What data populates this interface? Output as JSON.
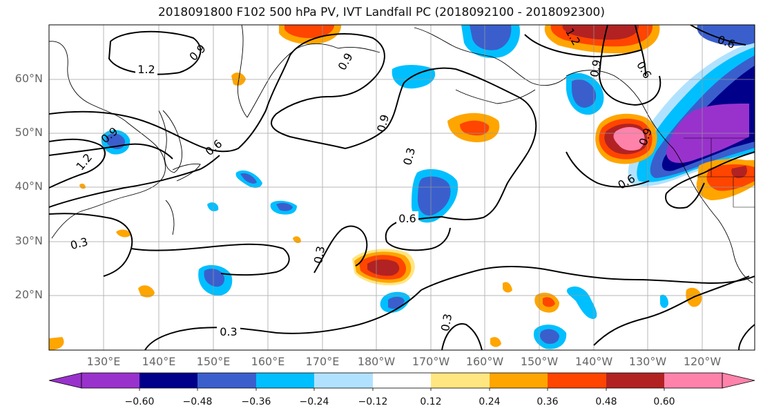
{
  "title": "2018091800 F102 500 hPa PV, IVT Landfall PC (2018092100 - 2018092300)",
  "latitude_labels": [
    "60°N",
    "50°N",
    "40°N",
    "30°N",
    "20°N"
  ],
  "longitude_labels": [
    "130°E",
    "140°E",
    "150°E",
    "160°E",
    "170°E",
    "180°W",
    "170°W",
    "160°W",
    "150°W",
    "140°W",
    "130°W",
    "120°W"
  ],
  "contour_labels": [
    "1.2",
    "0.9",
    "0.9",
    "0.6",
    "0.9",
    "0.3",
    "0.6",
    "0.3",
    "0.3",
    "0.3",
    "0.9",
    "0.6",
    "0.9",
    "0.6",
    "1.2",
    "0.9",
    "0.6",
    "0.3",
    "1.2"
  ],
  "colorbar": {
    "tick_labels": [
      "−0.60",
      "−0.48",
      "−0.36",
      "−0.24",
      "−0.12",
      "0.12",
      "0.24",
      "0.36",
      "0.48",
      "0.60"
    ],
    "colors": [
      "#9932cc",
      "#00008b",
      "#3a5fcd",
      "#00bfff",
      "#b0e2ff",
      "#ffffff",
      "#ffe680",
      "#ffa500",
      "#ff4500",
      "#b22222",
      "#ff82ab"
    ]
  },
  "chart_data": {
    "type": "map",
    "title": "2018091800 F102 500 hPa PV, IVT Landfall PC (2018092100 - 2018092300)",
    "lon_range": [
      "120°E",
      "115°W"
    ],
    "lat_range": [
      "10°N",
      "70°N"
    ],
    "grid": true,
    "colorbar_levels": [
      -0.6,
      -0.48,
      -0.36,
      -0.24,
      -0.12,
      0.12,
      0.24,
      0.36,
      0.48,
      0.6
    ]
  }
}
